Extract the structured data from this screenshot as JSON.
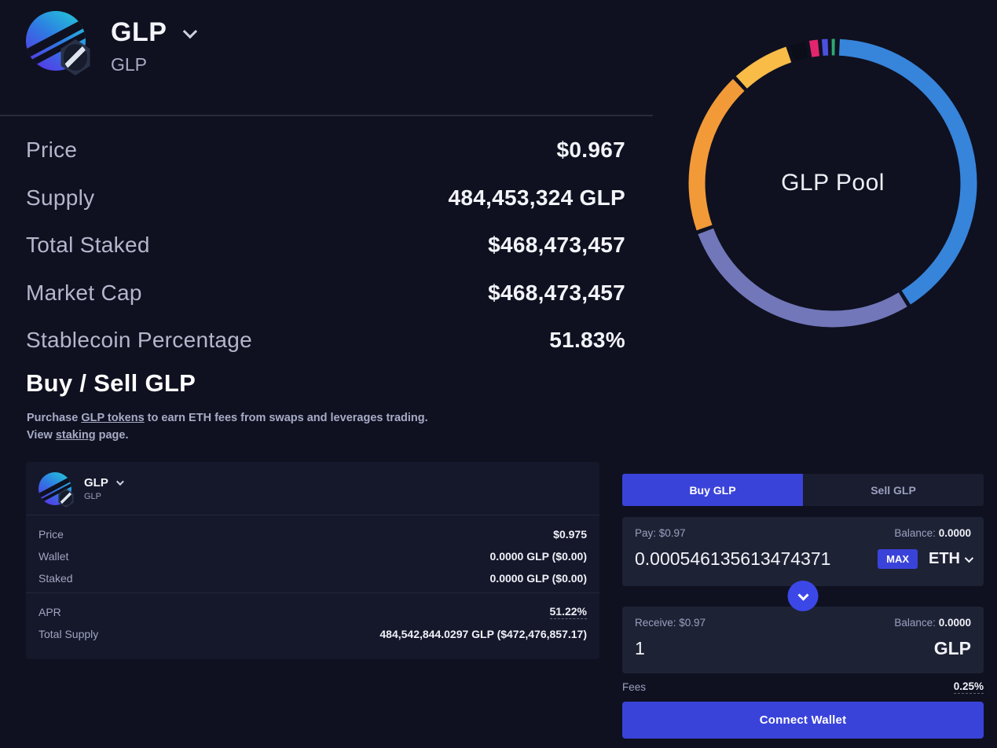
{
  "colors": {
    "page_bg": "#0f1120",
    "card_bg": "#15182b",
    "box_bg": "#1e2235",
    "accent_blue": "#3a43d9",
    "text_muted": "#a1a5c1"
  },
  "header": {
    "title": "GLP",
    "subtitle": "GLP"
  },
  "stats": {
    "rows": [
      {
        "label": "Price",
        "value": "$0.967"
      },
      {
        "label": "Supply",
        "value": "484,453,324 GLP"
      },
      {
        "label": "Total Staked",
        "value": "$468,473,457"
      },
      {
        "label": "Market Cap",
        "value": "$468,473,457"
      },
      {
        "label": "Stablecoin Percentage",
        "value": "51.83%"
      }
    ]
  },
  "chart_data": {
    "type": "pie",
    "variant": "donut",
    "title": "GLP Pool",
    "center_label": "GLP Pool",
    "start_angle_deg": 2,
    "gap_deg": 1.6,
    "legend": "none",
    "segments": [
      {
        "name": "segment-blue",
        "color": "#3784db",
        "percent": 40.6
      },
      {
        "name": "segment-purple",
        "color": "#7177b9",
        "percent": 28.3
      },
      {
        "name": "segment-orange",
        "color": "#f29a38",
        "percent": 18.6
      },
      {
        "name": "segment-yellow",
        "color": "#f8bc47",
        "percent": 6.9
      },
      {
        "name": "segment-black",
        "color": "#0b0e18",
        "percent": 2.2
      },
      {
        "name": "segment-pink",
        "color": "#e3256e",
        "percent": 1.4
      },
      {
        "name": "segment-indigo",
        "color": "#4a51dd",
        "percent": 1.1
      },
      {
        "name": "segment-green",
        "color": "#2fa874",
        "percent": 0.8
      }
    ]
  },
  "buy_sell": {
    "heading": "Buy / Sell GLP",
    "desc": {
      "p1a": "Purchase ",
      "p1_link": "GLP tokens",
      "p1b": " to earn ETH fees from swaps and leverages trading.",
      "p2a": "View ",
      "p2_link": "staking",
      "p2b": " page."
    }
  },
  "token_card": {
    "name": "GLP",
    "symbol": "GLP",
    "rows_primary": [
      {
        "label": "Price",
        "value": "$0.975"
      },
      {
        "label": "Wallet",
        "value": "0.0000 GLP ($0.00)"
      },
      {
        "label": "Staked",
        "value": "0.0000 GLP ($0.00)"
      }
    ],
    "rows_secondary": [
      {
        "label": "APR",
        "value": "51.22%"
      },
      {
        "label": "Total Supply",
        "value": "484,542,844.0297 GLP ($472,476,857.17)"
      }
    ]
  },
  "swap": {
    "tabs": {
      "buy": "Buy GLP",
      "sell": "Sell GLP",
      "active": "Buy GLP"
    },
    "pay": {
      "label": "Pay: $0.97",
      "balance_label": "Balance:",
      "balance_value": "0.0000",
      "amount": "0.000546135613474371",
      "max_label": "MAX",
      "token": "ETH"
    },
    "receive": {
      "label": "Receive: $0.97",
      "balance_label": "Balance:",
      "balance_value": "0.0000",
      "amount": "1",
      "token": "GLP"
    },
    "fees": {
      "label": "Fees",
      "value": "0.25%"
    },
    "connect_label": "Connect Wallet"
  }
}
